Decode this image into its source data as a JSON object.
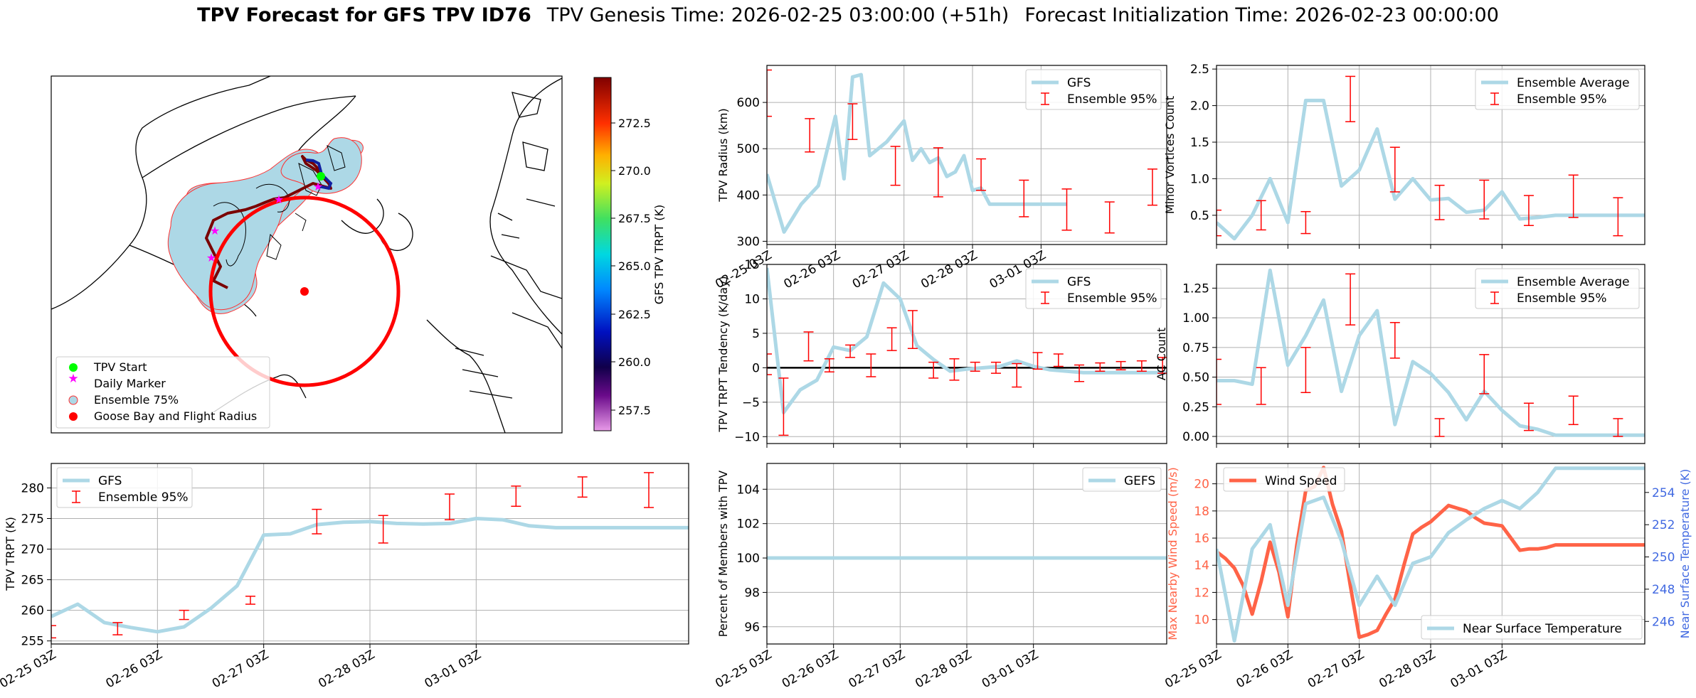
{
  "title": {
    "bold": "TPV Forecast for GFS TPV ID76",
    "genesis": "TPV Genesis Time: 2026-02-25 03:00:00 (+51h)",
    "init": "Forecast Initialization Time: 2026-02-23 00:00:00"
  },
  "colors": {
    "gfs": "#add8e6",
    "ens": "#ff0000",
    "wind": "#ff6347",
    "temp_axis": "#4169e1",
    "grid": "#b0b0b0"
  },
  "map": {
    "legend": [
      "TPV Start",
      "Daily Marker",
      "Ensemble 75%",
      "Goose Bay and Flight Radius"
    ],
    "colorbar": {
      "label": "GFS TPV TRPT (K)",
      "ticks": [
        "257.5",
        "260.0",
        "262.5",
        "265.0",
        "267.5",
        "270.0",
        "272.5"
      ]
    }
  },
  "time_ticks": [
    "02-25 03Z",
    "02-26 03Z",
    "02-27 03Z",
    "02-28 03Z",
    "03-01 03Z"
  ],
  "chart_data": [
    {
      "id": "radius",
      "type": "line",
      "ylabel": "TPV Radius (km)",
      "ylim": [
        293,
        680
      ],
      "yticks": [
        300,
        400,
        500,
        600
      ],
      "ytick_labels": [
        "300",
        "400",
        "500",
        "600"
      ],
      "legend": [
        "GFS",
        "Ensemble 95%"
      ],
      "x": [
        0,
        3,
        6,
        9,
        12,
        15,
        18,
        21,
        24,
        27,
        30,
        33,
        36,
        39,
        42,
        45,
        48,
        51,
        54,
        57,
        60,
        63,
        66,
        69,
        72,
        75,
        78,
        81,
        84,
        87,
        90,
        93,
        96,
        99,
        102,
        105,
        108,
        111,
        114,
        117,
        120,
        123,
        126,
        129,
        132,
        135,
        138,
        141,
        144,
        147,
        150,
        153,
        156,
        159,
        162,
        165,
        168,
        171,
        174,
        177,
        180,
        183,
        186,
        189,
        192,
        195,
        198,
        201,
        204,
        207,
        210
      ],
      "series": [
        {
          "name": "GFS",
          "x": [
            0,
            12,
            24,
            36,
            48,
            54,
            60,
            66,
            72,
            84,
            96,
            102,
            108,
            114,
            120,
            126,
            132,
            138,
            144,
            150,
            156,
            162,
            168,
            174,
            180,
            186,
            192,
            198,
            204,
            210
          ],
          "values": [
            445,
            320,
            380,
            420,
            570,
            435,
            655,
            660,
            485,
            515,
            560,
            475,
            500,
            470,
            480,
            440,
            450,
            485,
            410,
            415,
            380,
            380,
            380,
            380,
            380,
            380,
            380,
            380,
            380,
            380
          ]
        }
      ],
      "errorbars": [
        {
          "x": 0,
          "low": 570,
          "high": 670
        },
        {
          "x": 30,
          "low": 493,
          "high": 565
        },
        {
          "x": 60,
          "low": 520,
          "high": 597
        },
        {
          "x": 90,
          "low": 421,
          "high": 505
        },
        {
          "x": 120,
          "low": 396,
          "high": 502
        },
        {
          "x": 150,
          "low": 410,
          "high": 478
        },
        {
          "x": 180,
          "low": 353,
          "high": 432
        },
        {
          "x": 210,
          "low": 324,
          "high": 413
        },
        {
          "x": 240,
          "low": 318,
          "high": 385
        },
        {
          "x": 270,
          "low": 378,
          "high": 456
        }
      ]
    },
    {
      "id": "minor",
      "type": "line",
      "ylabel": "Minor Vortices Count",
      "ylim": [
        0.1,
        2.55
      ],
      "yticks": [
        0.5,
        1.0,
        1.5,
        2.0,
        2.5
      ],
      "ytick_labels": [
        "0.5",
        "1.0",
        "1.5",
        "2.0",
        "2.5"
      ],
      "legend": [
        "Ensemble Average",
        "Ensemble 95%"
      ],
      "series": [
        {
          "name": "Ensemble Average",
          "x": [
            0,
            12,
            24,
            36,
            48,
            60,
            72,
            84,
            96,
            108,
            120,
            132,
            144,
            156,
            168,
            180,
            192,
            204,
            216,
            228,
            240,
            252,
            264,
            276,
            288
          ],
          "values": [
            0.4,
            0.18,
            0.5,
            1.0,
            0.4,
            2.07,
            2.07,
            0.9,
            1.12,
            1.68,
            0.72,
            1.0,
            0.71,
            0.73,
            0.54,
            0.57,
            0.82,
            0.45,
            0.47,
            0.5,
            0.5,
            0.5,
            0.5,
            0.5,
            0.5
          ]
        }
      ],
      "errorbars": [
        {
          "x": 0,
          "low": 0.22,
          "high": 0.57
        },
        {
          "x": 30,
          "low": 0.3,
          "high": 0.7
        },
        {
          "x": 60,
          "low": 0.25,
          "high": 0.55
        },
        {
          "x": 90,
          "low": 1.78,
          "high": 2.4
        },
        {
          "x": 120,
          "low": 0.82,
          "high": 1.43
        },
        {
          "x": 150,
          "low": 0.44,
          "high": 0.91
        },
        {
          "x": 180,
          "low": 0.45,
          "high": 0.98
        },
        {
          "x": 210,
          "low": 0.36,
          "high": 0.77
        },
        {
          "x": 240,
          "low": 0.47,
          "high": 1.05
        },
        {
          "x": 270,
          "low": 0.22,
          "high": 0.74
        }
      ]
    },
    {
      "id": "tendency",
      "type": "line",
      "ylabel": "TPV TRPT Tendency (K/day)",
      "ylim": [
        -11,
        15
      ],
      "yticks": [
        -10,
        -5,
        0,
        5,
        10,
        15
      ],
      "ytick_labels": [
        "−10",
        "−5",
        "0",
        "5",
        "10",
        "15"
      ],
      "legend": [
        "GFS",
        "Ensemble 95%"
      ],
      "zero_line": true,
      "series": [
        {
          "name": "GFS",
          "x": [
            0,
            12,
            24,
            36,
            48,
            60,
            72,
            84,
            96,
            108,
            120,
            132,
            144,
            156,
            168,
            180,
            192,
            204,
            216,
            228,
            240,
            252,
            264,
            276,
            288
          ],
          "values": [
            14.5,
            -6.5,
            -3.2,
            -1.8,
            3,
            2.5,
            4.5,
            12.3,
            10,
            3.2,
            1.2,
            -0.5,
            -0.2,
            0,
            0.2,
            1,
            0.2,
            -0.3,
            -0.5,
            -0.7,
            -0.7,
            -0.7,
            -0.7,
            -0.7,
            -0.7
          ]
        }
      ],
      "errorbars": [
        {
          "x": 0,
          "low": -1,
          "high": 2
        },
        {
          "x": 12,
          "low": -9.8,
          "high": -1.5
        },
        {
          "x": 30,
          "low": 1,
          "high": 5.2
        },
        {
          "x": 45,
          "low": -0.6,
          "high": 1.3
        },
        {
          "x": 60,
          "low": 1.5,
          "high": 3.3
        },
        {
          "x": 75,
          "low": -1.3,
          "high": 2
        },
        {
          "x": 90,
          "low": 2.5,
          "high": 5.8
        },
        {
          "x": 105,
          "low": 2.8,
          "high": 8.3
        },
        {
          "x": 120,
          "low": -1.5,
          "high": 0.8
        },
        {
          "x": 135,
          "low": -1.8,
          "high": 1.3
        },
        {
          "x": 150,
          "low": -0.5,
          "high": 0.8
        },
        {
          "x": 165,
          "low": -0.8,
          "high": 0.8
        },
        {
          "x": 180,
          "low": -2.8,
          "high": 0.6
        },
        {
          "x": 195,
          "low": -0.2,
          "high": 2.2
        },
        {
          "x": 210,
          "low": 0.2,
          "high": 2
        },
        {
          "x": 225,
          "low": -2,
          "high": 0.4
        },
        {
          "x": 240,
          "low": -0.5,
          "high": 0.7
        },
        {
          "x": 255,
          "low": -0.3,
          "high": 0.9
        },
        {
          "x": 270,
          "low": -0.5,
          "high": 1
        },
        {
          "x": 285,
          "low": -0.8,
          "high": 1.5
        }
      ]
    },
    {
      "id": "ac",
      "type": "line",
      "ylabel": "AC Count",
      "ylim": [
        -0.06,
        1.45
      ],
      "yticks": [
        0,
        0.25,
        0.5,
        0.75,
        1.0,
        1.25
      ],
      "ytick_labels": [
        "0.00",
        "0.25",
        "0.50",
        "0.75",
        "1.00",
        "1.25"
      ],
      "legend": [
        "Ensemble Average",
        "Ensemble 95%"
      ],
      "series": [
        {
          "name": "Ensemble Average",
          "x": [
            0,
            12,
            24,
            36,
            48,
            60,
            72,
            84,
            96,
            108,
            120,
            132,
            144,
            156,
            168,
            180,
            192,
            204,
            216,
            228,
            240,
            252,
            264,
            276,
            288
          ],
          "values": [
            0.47,
            0.47,
            0.44,
            1.4,
            0.6,
            0.85,
            1.15,
            0.38,
            0.85,
            1.06,
            0.1,
            0.63,
            0.53,
            0.37,
            0.14,
            0.38,
            0.22,
            0.09,
            0.06,
            0.01,
            0.01,
            0.01,
            0.01,
            0.01,
            0.01
          ]
        }
      ],
      "errorbars": [
        {
          "x": 0,
          "low": 0.27,
          "high": 0.65
        },
        {
          "x": 30,
          "low": 0.27,
          "high": 0.58
        },
        {
          "x": 60,
          "low": 0.37,
          "high": 0.75
        },
        {
          "x": 90,
          "low": 0.94,
          "high": 1.37
        },
        {
          "x": 120,
          "low": 0.66,
          "high": 0.96
        },
        {
          "x": 150,
          "low": 0.0,
          "high": 0.15
        },
        {
          "x": 180,
          "low": 0.36,
          "high": 0.69
        },
        {
          "x": 210,
          "low": 0.05,
          "high": 0.28
        },
        {
          "x": 240,
          "low": 0.1,
          "high": 0.34
        },
        {
          "x": 270,
          "low": 0.0,
          "high": 0.15
        }
      ]
    },
    {
      "id": "trpt",
      "type": "line",
      "ylabel": "TPV TRPT (K)",
      "ylim": [
        254.5,
        284
      ],
      "yticks": [
        255,
        260,
        265,
        270,
        275,
        280
      ],
      "ytick_labels": [
        "255",
        "260",
        "265",
        "270",
        "275",
        "280"
      ],
      "legend": [
        "GFS",
        "Ensemble 95%"
      ],
      "series": [
        {
          "name": "GFS",
          "x": [
            0,
            12,
            24,
            36,
            48,
            60,
            72,
            84,
            96,
            108,
            120,
            132,
            144,
            156,
            168,
            180,
            192,
            204,
            216,
            228,
            240,
            252,
            264,
            276,
            288
          ],
          "values": [
            259,
            261,
            258,
            257.2,
            256.5,
            257.3,
            260.3,
            264,
            272.3,
            272.5,
            274,
            274.4,
            274.5,
            274.2,
            274.1,
            274.2,
            275,
            274.8,
            273.8,
            273.5,
            273.5,
            273.5,
            273.5,
            273.5,
            273.5
          ]
        }
      ],
      "errorbars": [
        {
          "x": 0,
          "low": 255.5,
          "high": 257.5
        },
        {
          "x": 30,
          "low": 256,
          "high": 258
        },
        {
          "x": 60,
          "low": 258.5,
          "high": 260
        },
        {
          "x": 90,
          "low": 261,
          "high": 262.3
        },
        {
          "x": 120,
          "low": 272.5,
          "high": 276.5
        },
        {
          "x": 150,
          "low": 271,
          "high": 275.5
        },
        {
          "x": 180,
          "low": 274.8,
          "high": 279
        },
        {
          "x": 210,
          "low": 277,
          "high": 280.3
        },
        {
          "x": 240,
          "low": 278.5,
          "high": 281.8
        },
        {
          "x": 270,
          "low": 276.8,
          "high": 282.5
        }
      ]
    },
    {
      "id": "percent",
      "type": "line",
      "ylabel": "Percent of Members with TPV",
      "ylim": [
        95,
        105.5
      ],
      "yticks": [
        96,
        98,
        100,
        102,
        104
      ],
      "ytick_labels": [
        "96",
        "98",
        "100",
        "102",
        "104"
      ],
      "legend": [
        "GEFS"
      ],
      "series": [
        {
          "name": "GEFS",
          "x": [
            0,
            288
          ],
          "values": [
            100,
            100
          ]
        }
      ]
    },
    {
      "id": "wind_temp",
      "type": "line",
      "ylabel": "Max Nearby Wind Speed (m/s)",
      "ylim": [
        8.2,
        21.5
      ],
      "yticks": [
        10,
        12,
        14,
        16,
        18,
        20
      ],
      "ytick_labels": [
        "10",
        "12",
        "14",
        "16",
        "18",
        "20"
      ],
      "ylabel2": "Near Surface Temperature (K)",
      "ylim2": [
        244.6,
        255.8
      ],
      "yticks2": [
        246,
        248,
        250,
        252,
        254
      ],
      "ytick_labels2": [
        "246",
        "248",
        "250",
        "252",
        "254"
      ],
      "legend": [
        "Wind Speed",
        "Near Surface Temperature"
      ],
      "series": [
        {
          "name": "Wind Speed",
          "x": [
            0,
            6,
            12,
            18,
            24,
            30,
            36,
            42,
            48,
            54,
            60,
            66,
            72,
            78,
            84,
            90,
            96,
            102,
            108,
            114,
            120,
            126,
            132,
            138,
            144,
            150,
            156,
            162,
            168,
            174,
            180,
            186,
            192,
            198,
            204,
            210,
            216,
            222,
            228,
            234,
            240,
            246,
            252,
            258,
            264,
            270,
            276,
            282,
            288
          ],
          "values": [
            15,
            14.5,
            13.8,
            12.5,
            10.4,
            12.8,
            15.7,
            13.5,
            10.2,
            15.5,
            19.5,
            19.8,
            21.2,
            18.5,
            16.5,
            12.5,
            8.7,
            8.9,
            9.2,
            10.4,
            11.5,
            14,
            16.3,
            16.8,
            17.2,
            17.8,
            18.4,
            18.2,
            18,
            17.5,
            17.1,
            17,
            16.9,
            16,
            15.1,
            15.2,
            15.2,
            15.3,
            15.5,
            15.5,
            15.5,
            15.5,
            15.5,
            15.5,
            15.5,
            15.5,
            15.5,
            15.5,
            15.5
          ]
        },
        {
          "name": "Near Surface Temperature",
          "x": [
            0,
            12,
            24,
            36,
            48,
            60,
            72,
            84,
            96,
            108,
            120,
            132,
            144,
            156,
            168,
            180,
            192,
            204,
            216,
            228,
            240,
            252,
            264,
            276,
            288
          ],
          "values": [
            250.5,
            244.8,
            250.5,
            252,
            247,
            253.3,
            253.7,
            251,
            247,
            248.8,
            247,
            249.6,
            250,
            251.5,
            252.3,
            253,
            253.5,
            253,
            254,
            255.5,
            255.5,
            255.5,
            255.5,
            255.5,
            255.5
          ]
        }
      ]
    }
  ]
}
